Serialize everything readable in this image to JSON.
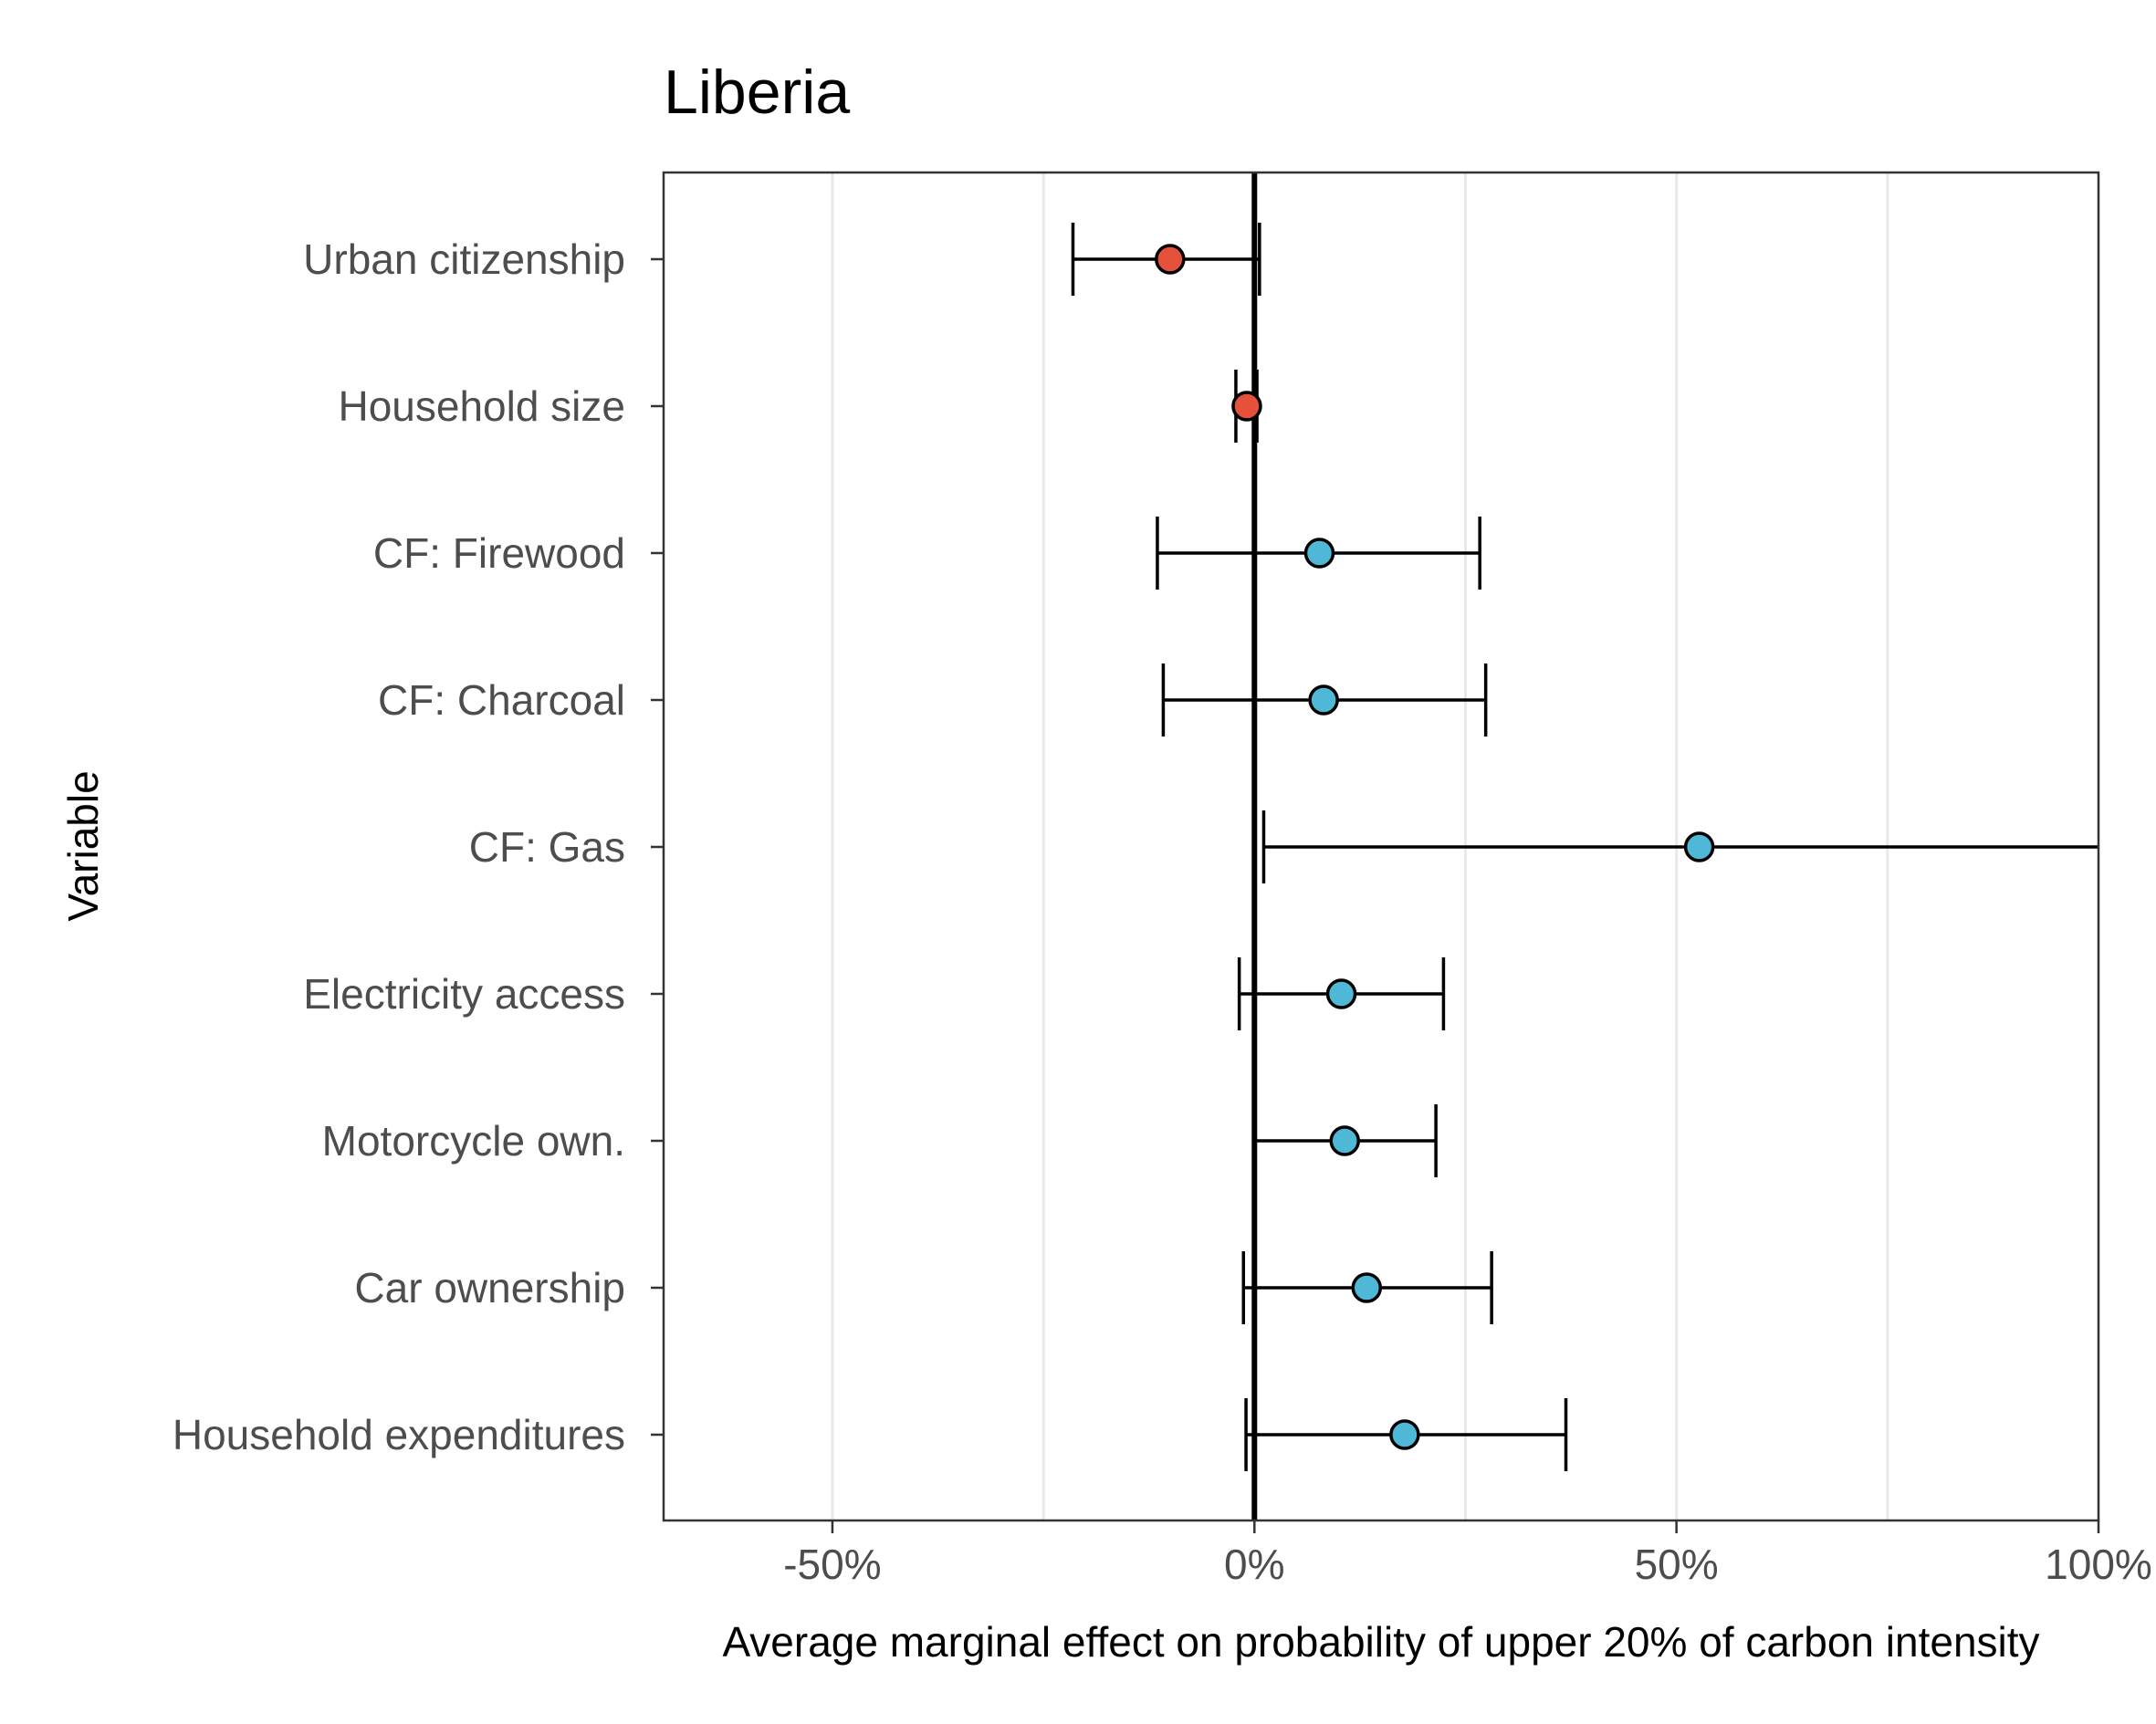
{
  "chart_data": {
    "type": "scatter",
    "subtype": "point-errorbar",
    "title": "Liberia",
    "xlabel": "Average marginal effect on probability of upper 20% of carbon intensity",
    "ylabel": "Variable",
    "xlim": [
      -0.7,
      1.0
    ],
    "xticks": [
      -0.5,
      0,
      0.5,
      1.0
    ],
    "xtick_labels": [
      "-50%",
      "0%",
      "50%",
      "100%"
    ],
    "grid": "vertical major and minor lines",
    "reference_line_x": 0,
    "colors": {
      "positive": "#4fb8d6",
      "negative": "#e5513a",
      "outline": "#000000"
    },
    "variables": [
      {
        "label": "Urban citizenship",
        "estimate": -0.1,
        "lower": -0.215,
        "upper": 0.006
      },
      {
        "label": "Household size",
        "estimate": -0.009,
        "lower": -0.022,
        "upper": 0.003
      },
      {
        "label": "CF: Firewood",
        "estimate": 0.077,
        "lower": -0.115,
        "upper": 0.267
      },
      {
        "label": "CF: Charcoal",
        "estimate": 0.082,
        "lower": -0.108,
        "upper": 0.274
      },
      {
        "label": "CF: Gas",
        "estimate": 0.527,
        "lower": 0.011,
        "upper": 1.0
      },
      {
        "label": "Electricity access",
        "estimate": 0.103,
        "lower": -0.018,
        "upper": 0.224
      },
      {
        "label": "Motorcycle own.",
        "estimate": 0.107,
        "lower": 0.0,
        "upper": 0.215
      },
      {
        "label": "Car ownership",
        "estimate": 0.133,
        "lower": -0.013,
        "upper": 0.281
      },
      {
        "label": "Household expenditures",
        "estimate": 0.178,
        "lower": -0.01,
        "upper": 0.369
      }
    ]
  }
}
